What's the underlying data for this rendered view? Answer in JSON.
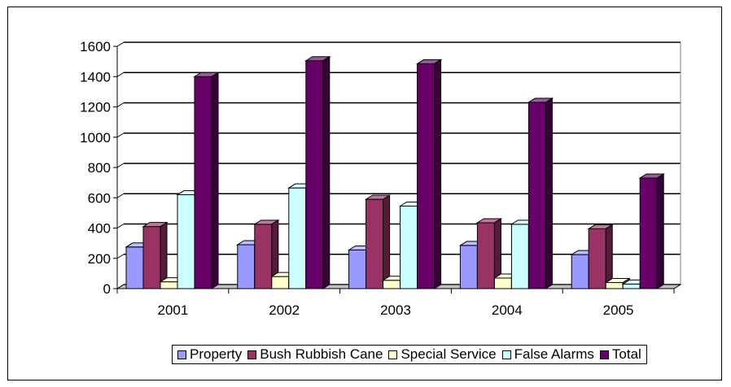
{
  "chart_data": {
    "type": "bar",
    "categories": [
      "2001",
      "2002",
      "2003",
      "2004",
      "2005"
    ],
    "series": [
      {
        "name": "Property",
        "values": [
          275,
          290,
          255,
          285,
          225
        ],
        "color": "#9999ff"
      },
      {
        "name": "Bush Rubbish Cane",
        "values": [
          410,
          425,
          590,
          435,
          395
        ],
        "color": "#993366"
      },
      {
        "name": "Special Service",
        "values": [
          45,
          80,
          55,
          70,
          40
        ],
        "color": "#ffffcc"
      },
      {
        "name": "False Alarms",
        "values": [
          620,
          665,
          545,
          425,
          30
        ],
        "color": "#ccffff"
      },
      {
        "name": "Total",
        "values": [
          1400,
          1505,
          1485,
          1230,
          730
        ],
        "color": "#660066"
      }
    ],
    "ylim": [
      0,
      1600
    ],
    "yticks": [
      "0",
      "200",
      "400",
      "600",
      "800",
      "1000",
      "1200",
      "1400",
      "1600"
    ],
    "grid": true,
    "legend_position": "bottom",
    "bar_style": "3d"
  }
}
